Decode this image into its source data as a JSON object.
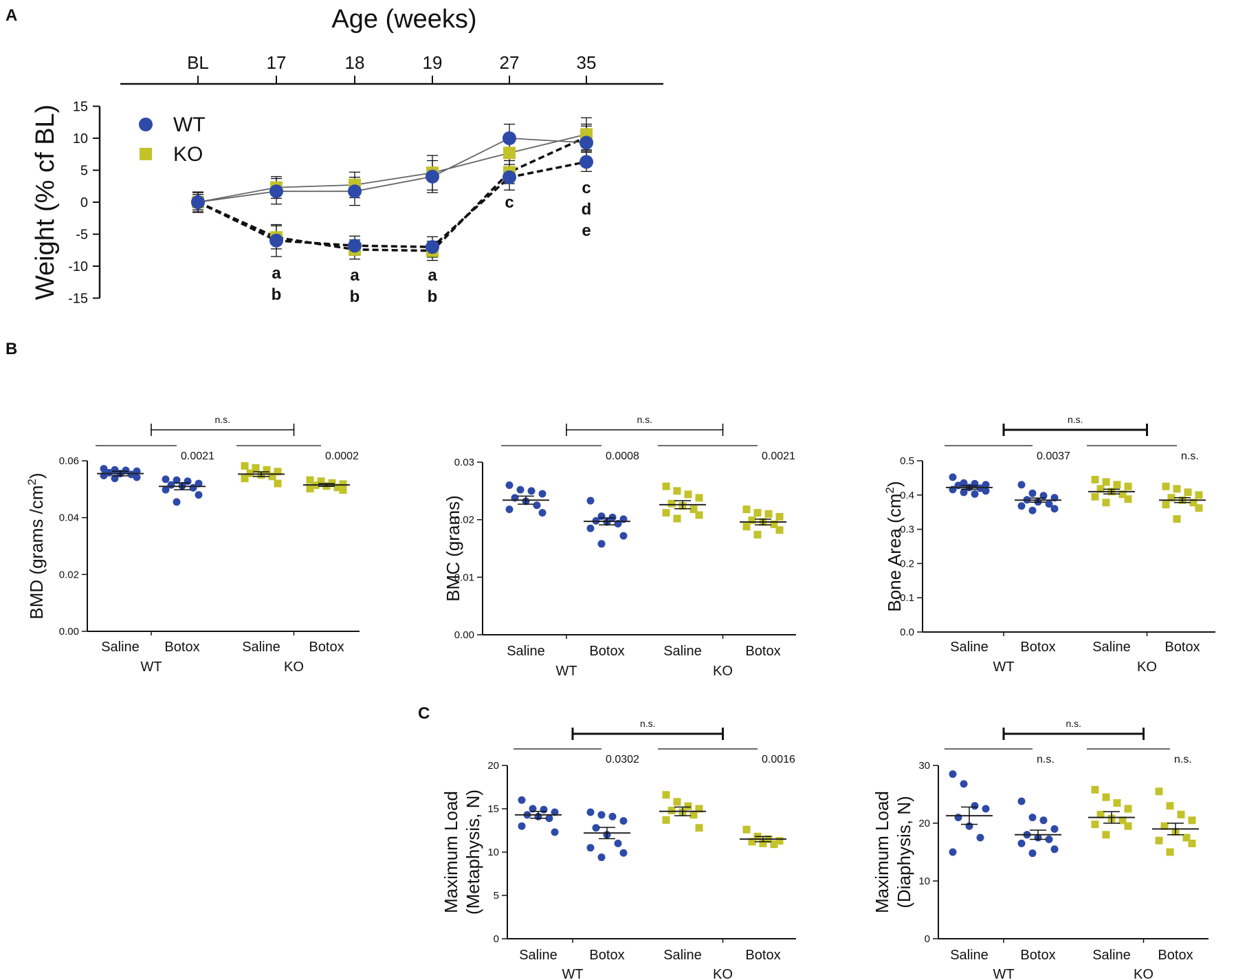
{
  "colors": {
    "wt": "#2e4aa8",
    "ko": "#c2c22a",
    "axis": "#111111"
  },
  "panel_labels": [
    "A",
    "B",
    "C"
  ],
  "chart_data": [
    {
      "id": "A",
      "type": "line",
      "title": "Age (weeks)",
      "x_categories": [
        "BL",
        "17",
        "18",
        "19",
        "27",
        "35"
      ],
      "ylabel": "Weight (% cf BL)",
      "ylim": [
        -15,
        15
      ],
      "yticks": [
        "15",
        "10",
        "5",
        "0",
        "-5",
        "-10",
        "-15"
      ],
      "legend": [
        {
          "name": "WT",
          "marker": "circle"
        },
        {
          "name": "KO",
          "marker": "square"
        }
      ],
      "series": [
        {
          "name": "WT Saline",
          "group": "WT",
          "style": "solid",
          "values": [
            0,
            1.7,
            1.7,
            4.0,
            10.0,
            9.3
          ],
          "errors": [
            1.5,
            2.0,
            2.2,
            2.5,
            2.2,
            2.6
          ]
        },
        {
          "name": "KO Saline",
          "group": "KO",
          "style": "solid",
          "values": [
            0,
            2.3,
            2.7,
            4.6,
            7.7,
            10.6
          ],
          "errors": [
            1.6,
            1.7,
            2.0,
            2.7,
            2.5,
            2.6
          ]
        },
        {
          "name": "WT Botox",
          "group": "WT",
          "style": "dashed",
          "values": [
            0,
            -6.0,
            -6.8,
            -7.0,
            3.9,
            6.3
          ],
          "errors": [
            1.2,
            2.5,
            1.5,
            1.6,
            2.0,
            1.5
          ]
        },
        {
          "name": "KO Botox",
          "group": "KO",
          "style": "dashed",
          "values": [
            0,
            -5.5,
            -7.4,
            -7.6,
            4.7,
            10.2
          ],
          "errors": [
            1.2,
            1.8,
            1.5,
            1.5,
            1.8,
            2.0
          ]
        }
      ],
      "annotations": [
        {
          "x": "17",
          "lines": [
            "a",
            "b"
          ]
        },
        {
          "x": "18",
          "lines": [
            "a",
            "b"
          ]
        },
        {
          "x": "19",
          "lines": [
            "a",
            "b"
          ]
        },
        {
          "x": "27",
          "lines": [
            "c"
          ]
        },
        {
          "x": "35",
          "lines": [
            "c",
            "d",
            "e"
          ]
        }
      ]
    },
    {
      "id": "B1",
      "type": "scatter",
      "ylabel_base": "BMD (grams /cm",
      "ylabel_sup": "2",
      "ylabel_end": ")",
      "ylim": [
        0,
        0.06
      ],
      "yticks": [
        "0.00",
        "0.02",
        "0.04",
        "0.06"
      ],
      "groups": [
        {
          "genotype": "WT",
          "treatment": "Saline",
          "mean": 0.0555,
          "sem": 0.0008,
          "points": [
            0.0572,
            0.0568,
            0.0566,
            0.0563,
            0.0558,
            0.0555,
            0.0552,
            0.0548,
            0.0542,
            0.0538
          ]
        },
        {
          "genotype": "WT",
          "treatment": "Botox",
          "mean": 0.051,
          "sem": 0.0012,
          "points": [
            0.0535,
            0.0532,
            0.0528,
            0.052,
            0.0515,
            0.0512,
            0.0505,
            0.0498,
            0.048,
            0.0455
          ]
        },
        {
          "genotype": "KO",
          "treatment": "Saline",
          "mean": 0.0553,
          "sem": 0.0008,
          "points": [
            0.0582,
            0.0575,
            0.0568,
            0.0562,
            0.0556,
            0.055,
            0.0545,
            0.0538,
            0.052
          ]
        },
        {
          "genotype": "KO",
          "treatment": "Botox",
          "mean": 0.0515,
          "sem": 0.0005,
          "points": [
            0.0532,
            0.0528,
            0.0522,
            0.0518,
            0.0514,
            0.0511,
            0.0506,
            0.0502,
            0.0497
          ]
        }
      ],
      "xlabels": [
        "Saline",
        "Botox",
        "Saline",
        "Botox"
      ],
      "genotype_labels": [
        "WT",
        "KO"
      ],
      "top_bracket": "n.s.",
      "wt_p": "0.0021",
      "ko_p": "0.0002"
    },
    {
      "id": "B2",
      "type": "scatter",
      "ylabel_base": "BMC (grams)",
      "ylabel_sup": "",
      "ylabel_end": "",
      "ylim": [
        0,
        0.03
      ],
      "yticks": [
        "0.00",
        "0.01",
        "0.02",
        "0.03"
      ],
      "groups": [
        {
          "genotype": "WT",
          "treatment": "Saline",
          "mean": 0.0234,
          "sem": 0.0007,
          "points": [
            0.026,
            0.0252,
            0.025,
            0.0245,
            0.0238,
            0.0232,
            0.0225,
            0.0218,
            0.0212
          ]
        },
        {
          "genotype": "WT",
          "treatment": "Botox",
          "mean": 0.0197,
          "sem": 0.0006,
          "points": [
            0.0233,
            0.0206,
            0.0204,
            0.0201,
            0.0198,
            0.0196,
            0.0193,
            0.0185,
            0.0172,
            0.0158
          ]
        },
        {
          "genotype": "KO",
          "treatment": "Saline",
          "mean": 0.0226,
          "sem": 0.0007,
          "points": [
            0.0258,
            0.025,
            0.0244,
            0.0238,
            0.0228,
            0.0224,
            0.0218,
            0.0212,
            0.0208,
            0.0202
          ]
        },
        {
          "genotype": "KO",
          "treatment": "Botox",
          "mean": 0.0196,
          "sem": 0.0005,
          "points": [
            0.0218,
            0.0212,
            0.021,
            0.0205,
            0.0199,
            0.0196,
            0.0192,
            0.0188,
            0.0182,
            0.0174
          ]
        }
      ],
      "xlabels": [
        "Saline",
        "Botox",
        "Saline",
        "Botox"
      ],
      "genotype_labels": [
        "WT",
        "KO"
      ],
      "top_bracket": "n.s.",
      "wt_p": "0.0008",
      "ko_p": "0.0021"
    },
    {
      "id": "B3",
      "type": "scatter",
      "ylabel_base": "Bone Area (cm",
      "ylabel_sup": "2",
      "ylabel_end": ")",
      "ylim": [
        0,
        0.5
      ],
      "yticks": [
        "0.0",
        "0.1",
        "0.2",
        "0.3",
        "0.4",
        "0.5"
      ],
      "groups": [
        {
          "genotype": "WT",
          "treatment": "Saline",
          "mean": 0.422,
          "sem": 0.005,
          "points": [
            0.452,
            0.435,
            0.433,
            0.43,
            0.428,
            0.422,
            0.42,
            0.416,
            0.412,
            0.408,
            0.403
          ]
        },
        {
          "genotype": "WT",
          "treatment": "Botox",
          "mean": 0.385,
          "sem": 0.006,
          "points": [
            0.43,
            0.405,
            0.398,
            0.392,
            0.386,
            0.38,
            0.374,
            0.368,
            0.36,
            0.355
          ]
        },
        {
          "genotype": "KO",
          "treatment": "Saline",
          "mean": 0.41,
          "sem": 0.007,
          "points": [
            0.445,
            0.438,
            0.43,
            0.425,
            0.418,
            0.41,
            0.402,
            0.395,
            0.388,
            0.378
          ]
        },
        {
          "genotype": "KO",
          "treatment": "Botox",
          "mean": 0.385,
          "sem": 0.007,
          "points": [
            0.425,
            0.418,
            0.408,
            0.4,
            0.392,
            0.385,
            0.378,
            0.372,
            0.362,
            0.33
          ]
        }
      ],
      "xlabels": [
        "Saline",
        "Botox",
        "Saline",
        "Botox"
      ],
      "genotype_labels": [
        "WT",
        "KO"
      ],
      "top_bracket": "n.s.",
      "wt_p": "0.0037",
      "ko_p": "n.s."
    },
    {
      "id": "C1",
      "type": "scatter",
      "ylabel_base": "Maximum Load",
      "ylabel_line2": "(Metaphysis, N)",
      "ylim": [
        0,
        20
      ],
      "yticks": [
        "0",
        "5",
        "10",
        "15",
        "20"
      ],
      "groups": [
        {
          "genotype": "WT",
          "treatment": "Saline",
          "mean": 14.3,
          "sem": 0.4,
          "points": [
            16.0,
            15.0,
            14.9,
            14.6,
            14.3,
            14.1,
            13.9,
            13.0,
            12.3
          ]
        },
        {
          "genotype": "WT",
          "treatment": "Botox",
          "mean": 12.2,
          "sem": 0.65,
          "points": [
            14.6,
            14.3,
            14.1,
            13.6,
            12.8,
            12.0,
            11.0,
            10.5,
            9.9,
            9.4
          ]
        },
        {
          "genotype": "KO",
          "treatment": "Saline",
          "mean": 14.7,
          "sem": 0.5,
          "points": [
            16.6,
            15.8,
            15.3,
            15.0,
            14.8,
            14.6,
            14.3,
            13.7,
            12.8
          ]
        },
        {
          "genotype": "KO",
          "treatment": "Botox",
          "mean": 11.5,
          "sem": 0.3,
          "points": [
            12.6,
            11.8,
            11.5,
            11.3,
            11.2,
            11.0,
            10.9
          ]
        }
      ],
      "xlabels": [
        "Saline",
        "Botox",
        "Saline",
        "Botox"
      ],
      "genotype_labels": [
        "WT",
        "KO"
      ],
      "top_bracket": "n.s.",
      "wt_p": "0.0302",
      "ko_p": "0.0016"
    },
    {
      "id": "C2",
      "type": "scatter",
      "ylabel_base": "Maximum Load",
      "ylabel_line2": "(Diaphysis, N)",
      "ylim": [
        0,
        30
      ],
      "yticks": [
        "0",
        "10",
        "20",
        "30"
      ],
      "groups": [
        {
          "genotype": "WT",
          "treatment": "Saline",
          "mean": 21.3,
          "sem": 1.5,
          "points": [
            28.5,
            26.8,
            23.0,
            22.5,
            21.0,
            19.5,
            17.5,
            15.0
          ]
        },
        {
          "genotype": "WT",
          "treatment": "Botox",
          "mean": 18.0,
          "sem": 0.8,
          "points": [
            23.8,
            21.0,
            20.5,
            19.0,
            18.0,
            17.5,
            17.2,
            16.5,
            15.5,
            14.8
          ]
        },
        {
          "genotype": "KO",
          "treatment": "Saline",
          "mean": 21.0,
          "sem": 1.0,
          "points": [
            25.8,
            24.5,
            23.5,
            22.5,
            21.5,
            20.8,
            20.5,
            19.8,
            19.5,
            18.0
          ]
        },
        {
          "genotype": "KO",
          "treatment": "Botox",
          "mean": 19.0,
          "sem": 1.0,
          "points": [
            25.5,
            23.0,
            21.5,
            20.5,
            19.5,
            18.5,
            17.5,
            17.0,
            16.5,
            15.0
          ]
        }
      ],
      "xlabels": [
        "Saline",
        "Botox",
        "Saline",
        "Botox"
      ],
      "genotype_labels": [
        "WT",
        "KO"
      ],
      "top_bracket": "n.s.",
      "wt_p": "n.s.",
      "ko_p": "n.s."
    }
  ]
}
